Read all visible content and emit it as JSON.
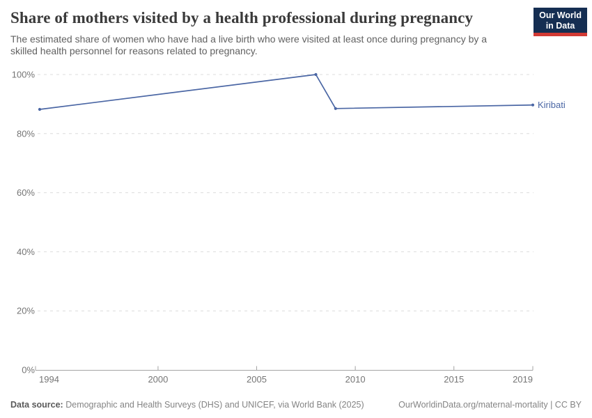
{
  "header": {
    "title": "Share of mothers visited by a health professional during pregnancy",
    "subtitle": "The estimated share of women who have had a live birth who were visited at least once during pregnancy by a skilled health personnel for reasons related to pregnancy.",
    "logo": {
      "line1": "Our World",
      "line2": "in Data"
    }
  },
  "chart_data": {
    "type": "line",
    "title": "Share of mothers visited by a health professional during pregnancy",
    "xlabel": "",
    "ylabel": "",
    "xlim": [
      1994,
      2019
    ],
    "ylim": [
      0,
      100
    ],
    "x_ticks": [
      1994,
      2000,
      2005,
      2010,
      2015,
      2019
    ],
    "y_ticks": [
      0,
      20,
      40,
      60,
      80,
      100
    ],
    "y_suffix": "%",
    "grid": "horizontal-dashed",
    "legend_position": "end-of-line-label",
    "series": [
      {
        "name": "Kiribati",
        "color": "#4a66a4",
        "points": [
          [
            1994,
            88.2
          ],
          [
            2008,
            100
          ],
          [
            2009,
            88.5
          ],
          [
            2019,
            89.7
          ]
        ]
      }
    ]
  },
  "footer": {
    "source_label": "Data source:",
    "source_text": "Demographic and Health Surveys (DHS) and UNICEF, via World Bank (2025)",
    "link_text": "OurWorldinData.org/maternal-mortality | CC BY"
  },
  "colors": {
    "line": "#4a66a4",
    "logo_bg": "#152e52",
    "logo_accent": "#d23a34",
    "grid": "#dcdcdc",
    "axis": "#a3a3a3",
    "tick_label": "#757575",
    "title": "#3a3a3a",
    "subtitle": "#616161"
  }
}
